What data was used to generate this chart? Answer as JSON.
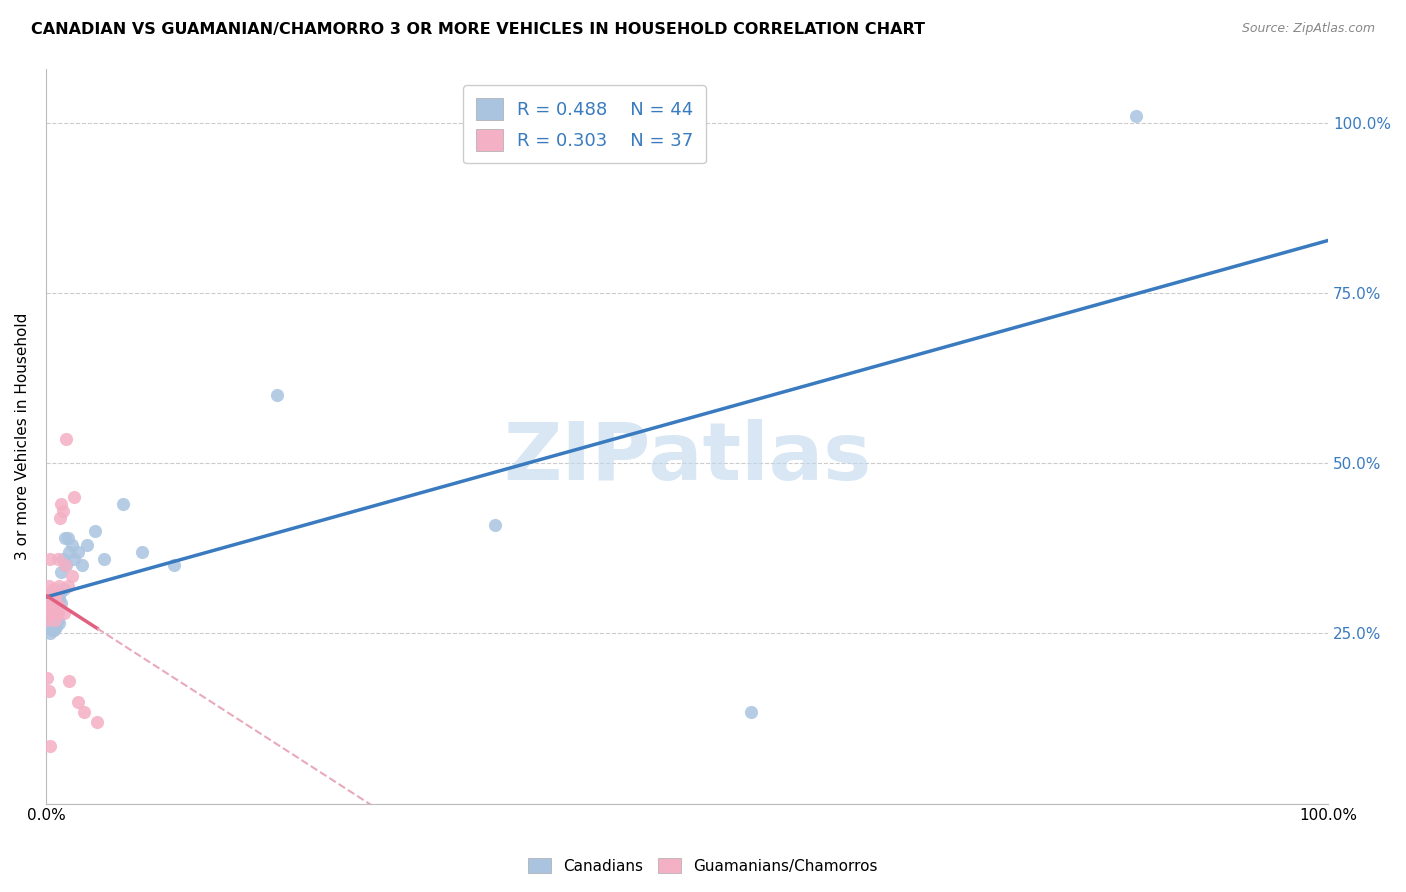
{
  "title": "CANADIAN VS GUAMANIAN/CHAMORRO 3 OR MORE VEHICLES IN HOUSEHOLD CORRELATION CHART",
  "source": "Source: ZipAtlas.com",
  "ylabel": "3 or more Vehicles in Household",
  "watermark": "ZIPatlas",
  "legend_r1": "R = 0.488",
  "legend_n1": "N = 44",
  "legend_r2": "R = 0.303",
  "legend_n2": "N = 37",
  "canadian_color": "#aac4e0",
  "canadian_line_color": "#3a7bbf",
  "guam_color": "#f4b0c4",
  "guam_line_color": "#e06080",
  "guam_dashed_color": "#e8aabb",
  "background_color": "#ffffff",
  "grid_color": "#cccccc",
  "right_axis_color": "#3a7bbf",
  "can_x": [
    0.001,
    0.002,
    0.002,
    0.003,
    0.003,
    0.003,
    0.004,
    0.004,
    0.005,
    0.005,
    0.005,
    0.006,
    0.006,
    0.007,
    0.007,
    0.008,
    0.008,
    0.009,
    0.009,
    0.01,
    0.01,
    0.011,
    0.012,
    0.012,
    0.013,
    0.014,
    0.015,
    0.016,
    0.017,
    0.018,
    0.02,
    0.022,
    0.025,
    0.028,
    0.032,
    0.038,
    0.045,
    0.06,
    0.075,
    0.1,
    0.18,
    0.35,
    0.55,
    0.85
  ],
  "can_y": [
    0.29,
    0.275,
    0.265,
    0.27,
    0.26,
    0.25,
    0.28,
    0.265,
    0.275,
    0.26,
    0.255,
    0.27,
    0.255,
    0.28,
    0.265,
    0.285,
    0.26,
    0.295,
    0.27,
    0.3,
    0.265,
    0.31,
    0.295,
    0.34,
    0.36,
    0.315,
    0.39,
    0.35,
    0.39,
    0.37,
    0.38,
    0.36,
    0.37,
    0.35,
    0.38,
    0.4,
    0.36,
    0.44,
    0.37,
    0.35,
    0.6,
    0.41,
    0.135,
    1.01
  ],
  "guam_x": [
    0.001,
    0.001,
    0.002,
    0.002,
    0.002,
    0.003,
    0.003,
    0.003,
    0.004,
    0.004,
    0.005,
    0.005,
    0.005,
    0.006,
    0.006,
    0.007,
    0.007,
    0.007,
    0.008,
    0.008,
    0.009,
    0.009,
    0.01,
    0.01,
    0.011,
    0.012,
    0.013,
    0.014,
    0.015,
    0.016,
    0.017,
    0.018,
    0.02,
    0.022,
    0.025,
    0.03,
    0.04
  ],
  "guam_y": [
    0.29,
    0.27,
    0.31,
    0.29,
    0.32,
    0.28,
    0.295,
    0.36,
    0.3,
    0.28,
    0.31,
    0.28,
    0.3,
    0.29,
    0.315,
    0.28,
    0.3,
    0.27,
    0.31,
    0.29,
    0.28,
    0.36,
    0.29,
    0.32,
    0.42,
    0.44,
    0.43,
    0.28,
    0.35,
    0.535,
    0.32,
    0.18,
    0.335,
    0.45,
    0.15,
    0.135,
    0.12
  ],
  "guam_low_points_x": [
    0.001,
    0.002,
    0.003
  ],
  "guam_low_points_y": [
    0.185,
    0.165,
    0.085
  ],
  "xlim": [
    0.0,
    1.0
  ],
  "ylim": [
    0.0,
    1.08
  ],
  "xticks": [
    0.0,
    0.25,
    0.5,
    0.75,
    1.0
  ],
  "yticks": [
    0.0,
    0.25,
    0.5,
    0.75,
    1.0
  ],
  "ytick_right_labels": [
    "25.0%",
    "50.0%",
    "75.0%",
    "100.0%"
  ]
}
